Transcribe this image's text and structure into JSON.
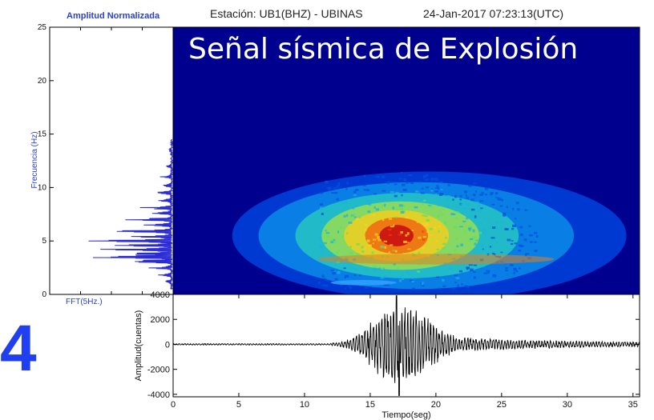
{
  "panel_number": "4",
  "header": {
    "station": "Estación: UB1(BHZ) - UBINAS",
    "timestamp": "24-Jan-2017 07:23:13(UTC)",
    "left_title": "Amplitud Normalizada"
  },
  "spectrogram_label": "Señal sísmica de Explosión",
  "colors": {
    "background_blue": "#00008f",
    "fft_line": "#2a2ad6",
    "waveform": "#000000",
    "label_blue": "#2a3fd0",
    "panel_number": "#1f3ff0"
  },
  "chart_data": [
    {
      "type": "line",
      "name": "fft",
      "xlabel": "FFT(5Hz.)",
      "ylabel": "Frecuencia (Hz)",
      "ylim": [
        0,
        25
      ],
      "yticks": [
        "0",
        "5",
        "10",
        "15",
        "20",
        "25"
      ],
      "peaks": [
        {
          "freq": 1.2,
          "amp": 0.08
        },
        {
          "freq": 1.8,
          "amp": 0.12
        },
        {
          "freq": 2.5,
          "amp": 0.2
        },
        {
          "freq": 3.1,
          "amp": 0.55
        },
        {
          "freq": 3.5,
          "amp": 0.85
        },
        {
          "freq": 3.8,
          "amp": 0.45
        },
        {
          "freq": 4.2,
          "amp": 0.7
        },
        {
          "freq": 4.6,
          "amp": 0.5
        },
        {
          "freq": 5.0,
          "amp": 1.0
        },
        {
          "freq": 5.4,
          "amp": 0.35
        },
        {
          "freq": 5.9,
          "amp": 0.55
        },
        {
          "freq": 6.5,
          "amp": 0.25
        },
        {
          "freq": 7.0,
          "amp": 0.4
        },
        {
          "freq": 7.6,
          "amp": 0.18
        },
        {
          "freq": 8.1,
          "amp": 0.28
        },
        {
          "freq": 8.8,
          "amp": 0.15
        },
        {
          "freq": 9.5,
          "amp": 0.2
        },
        {
          "freq": 10.2,
          "amp": 0.1
        },
        {
          "freq": 11.0,
          "amp": 0.12
        },
        {
          "freq": 12.0,
          "amp": 0.06
        },
        {
          "freq": 13.5,
          "amp": 0.04
        }
      ]
    },
    {
      "type": "heatmap",
      "name": "spectrogram",
      "ylim": [
        0,
        25
      ],
      "xlim": [
        0,
        35.5
      ],
      "energy_center": {
        "t": 17,
        "f": 5.5
      },
      "energy_extent": {
        "t_start": 11,
        "t_end": 35.5,
        "f_max": 14.5
      }
    },
    {
      "type": "line",
      "name": "waveform",
      "xlabel": "Tiempo(seg)",
      "ylabel": "Amplitud(cuentas)",
      "xlim": [
        0,
        35.5
      ],
      "ylim": [
        -4200,
        4000
      ],
      "xticks": [
        "0",
        "5",
        "10",
        "15",
        "20",
        "25",
        "30",
        "35"
      ],
      "yticks": [
        "-4000",
        "-2000",
        "0",
        "2000",
        "4000"
      ],
      "onset_s": 12,
      "peak_time_s": 17,
      "peak_amplitude": 3900,
      "min_amplitude": -4100
    }
  ]
}
